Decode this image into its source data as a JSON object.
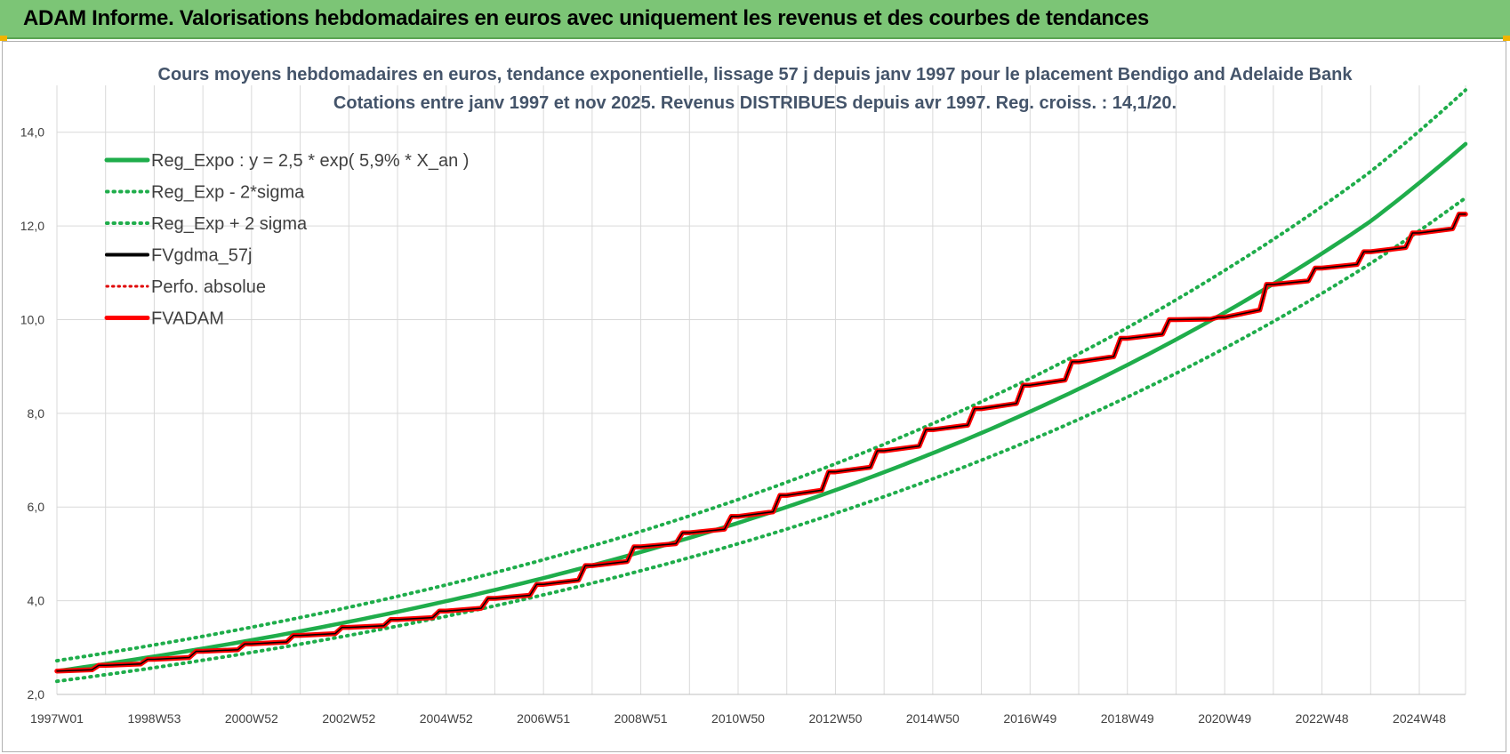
{
  "header": {
    "title": "ADAM Informe. Valorisations hebdomadaires en euros avec uniquement les revenus et des courbes de tendances"
  },
  "colors": {
    "banner": "#7cc576",
    "trend": "#1fad4b",
    "black_line": "#000000",
    "red_line": "#ff0000",
    "dotted_red": "#e00000",
    "grid": "#d9d9d9"
  },
  "chart_data": {
    "type": "line",
    "title_lines": [
      "Cours moyens hebdomadaires en euros, tendance exponentielle, lissage 57 j depuis janv 1997  pour le placement Bendigo and Adelaide Bank",
      "Cotations entre janv 1997 et nov 2025. Revenus DISTRIBUES depuis avr 1997.  Reg. croiss. : 14,1/20."
    ],
    "ylim": [
      2.0,
      15.0
    ],
    "y_ticks": [
      "2,0",
      "4,0",
      "6,0",
      "8,0",
      "10,0",
      "12,0",
      "14,0"
    ],
    "y_tick_values": [
      2,
      4,
      6,
      8,
      10,
      12,
      14
    ],
    "x_range_years": [
      1997.0,
      2025.95
    ],
    "x_ticks": [
      {
        "label": "1997W01",
        "year": 1997.0
      },
      {
        "label": "1998W53",
        "year": 1999.0
      },
      {
        "label": "2000W52",
        "year": 2001.0
      },
      {
        "label": "2002W52",
        "year": 2003.0
      },
      {
        "label": "2004W52",
        "year": 2005.0
      },
      {
        "label": "2006W51",
        "year": 2007.0
      },
      {
        "label": "2008W51",
        "year": 2009.0
      },
      {
        "label": "2010W50",
        "year": 2011.0
      },
      {
        "label": "2012W50",
        "year": 2013.0
      },
      {
        "label": "2014W50",
        "year": 2015.0
      },
      {
        "label": "2016W49",
        "year": 2017.0
      },
      {
        "label": "2018W49",
        "year": 2019.0
      },
      {
        "label": "2020W49",
        "year": 2021.0
      },
      {
        "label": "2022W48",
        "year": 2023.0
      },
      {
        "label": "2024W48",
        "year": 2025.0
      }
    ],
    "legend": [
      {
        "name": "Reg_Expo : y = 2,5 * exp( 5,9% *  X_an )",
        "style": "solid-green"
      },
      {
        "name": "Reg_Exp - 2*sigma",
        "style": "dotted-green"
      },
      {
        "name": "Reg_Exp + 2 sigma",
        "style": "dotted-green"
      },
      {
        "name": "FVgdma_57j",
        "style": "solid-black"
      },
      {
        "name": "Perfo. absolue",
        "style": "dotted-red"
      },
      {
        "name": "FVADAM",
        "style": "solid-red"
      }
    ],
    "series": [
      {
        "name": "Reg_Expo : y = 2,5 * exp( 5,9% *  X_an )",
        "x": [
          1997,
          2000,
          2003,
          2006,
          2009,
          2012,
          2015,
          2018,
          2021,
          2024,
          2025.95
        ],
        "values": [
          2.5,
          2.98,
          3.55,
          4.23,
          5.04,
          6.0,
          7.15,
          8.52,
          10.15,
          12.1,
          13.75
        ]
      },
      {
        "name": "Reg_Exp - 2*sigma",
        "x": [
          1997,
          2000,
          2003,
          2006,
          2009,
          2012,
          2015,
          2018,
          2021,
          2024,
          2025.95
        ],
        "values": [
          2.28,
          2.73,
          3.26,
          3.89,
          4.64,
          5.53,
          6.6,
          7.87,
          9.39,
          11.2,
          12.6
        ]
      },
      {
        "name": "Reg_Exp + 2 sigma",
        "x": [
          1997,
          2000,
          2003,
          2006,
          2009,
          2012,
          2015,
          2018,
          2021,
          2024,
          2025.95
        ],
        "values": [
          2.72,
          3.24,
          3.86,
          4.6,
          5.48,
          6.53,
          7.78,
          9.27,
          11.05,
          13.16,
          14.9
        ]
      },
      {
        "name": "FVADAM",
        "x": [
          1997,
          1998,
          1999,
          2000,
          2001,
          2002,
          2003,
          2004,
          2005,
          2006,
          2007,
          2008,
          2009,
          2010,
          2011,
          2012,
          2013,
          2014,
          2015,
          2016,
          2017,
          2018,
          2019,
          2020,
          2021,
          2022,
          2023,
          2024,
          2025,
          2025.95
        ],
        "values": [
          2.5,
          2.62,
          2.75,
          2.92,
          3.08,
          3.26,
          3.43,
          3.6,
          3.78,
          4.05,
          4.35,
          4.75,
          5.15,
          5.45,
          5.8,
          6.25,
          6.75,
          7.2,
          7.65,
          8.1,
          8.6,
          9.1,
          9.6,
          10.0,
          10.05,
          10.75,
          11.1,
          11.45,
          11.85,
          12.25
        ]
      },
      {
        "name": "FVgdma_57j",
        "x": [
          1997,
          1998,
          1999,
          2000,
          2001,
          2002,
          2003,
          2004,
          2005,
          2006,
          2007,
          2008,
          2009,
          2010,
          2011,
          2012,
          2013,
          2014,
          2015,
          2016,
          2017,
          2018,
          2019,
          2020,
          2021,
          2022,
          2023,
          2024,
          2025,
          2025.95
        ],
        "values": [
          2.5,
          2.62,
          2.75,
          2.92,
          3.08,
          3.26,
          3.43,
          3.6,
          3.78,
          4.05,
          4.35,
          4.75,
          5.15,
          5.45,
          5.8,
          6.25,
          6.75,
          7.2,
          7.65,
          8.1,
          8.6,
          9.1,
          9.6,
          10.0,
          10.05,
          10.75,
          11.1,
          11.45,
          11.85,
          12.25
        ]
      }
    ]
  }
}
